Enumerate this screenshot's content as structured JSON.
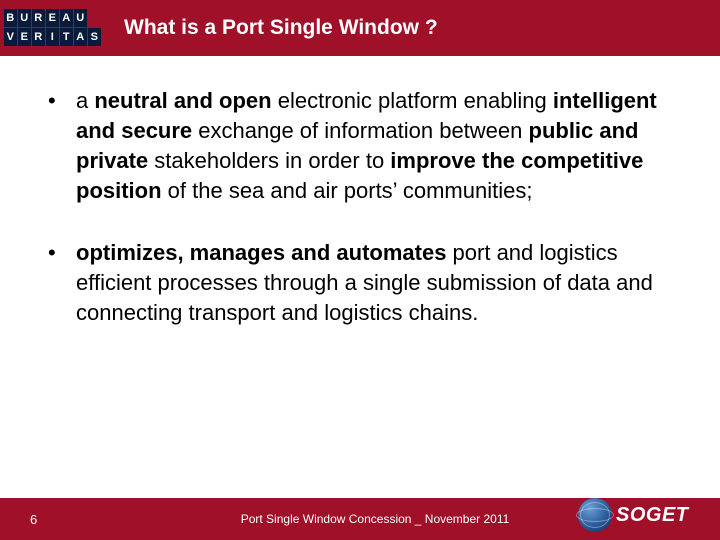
{
  "header": {
    "logo_letters_row1": [
      "B",
      "U",
      "R",
      "E",
      "A",
      "U"
    ],
    "logo_letters_row2": [
      "V",
      "E",
      "R",
      "I",
      "T",
      "A",
      "S"
    ],
    "title": "What is a Port Single Window ?"
  },
  "bullets": [
    {
      "segments": [
        {
          "t": "a ",
          "b": false
        },
        {
          "t": "neutral and open",
          "b": true
        },
        {
          "t": " electronic platform enabling ",
          "b": false
        },
        {
          "t": "intelligent and secure",
          "b": true
        },
        {
          "t": " exchange of information between ",
          "b": false
        },
        {
          "t": "public and private",
          "b": true
        },
        {
          "t": " stakeholders in order to ",
          "b": false
        },
        {
          "t": "improve the competitive position",
          "b": true
        },
        {
          "t": " of the sea and air ports’ communities;",
          "b": false
        }
      ]
    },
    {
      "segments": [
        {
          "t": "optimizes, manages and automates",
          "b": true
        },
        {
          "t": " port and logistics efficient processes through a single submission of data and connecting transport and logistics chains.",
          "b": false
        }
      ]
    }
  ],
  "footer": {
    "page": "6",
    "text": "Port Single Window Concession _ November  2011",
    "soget": "SOGET"
  },
  "colors": {
    "brand_red": "#a01028",
    "bv_navy": "#0a1a3a"
  }
}
